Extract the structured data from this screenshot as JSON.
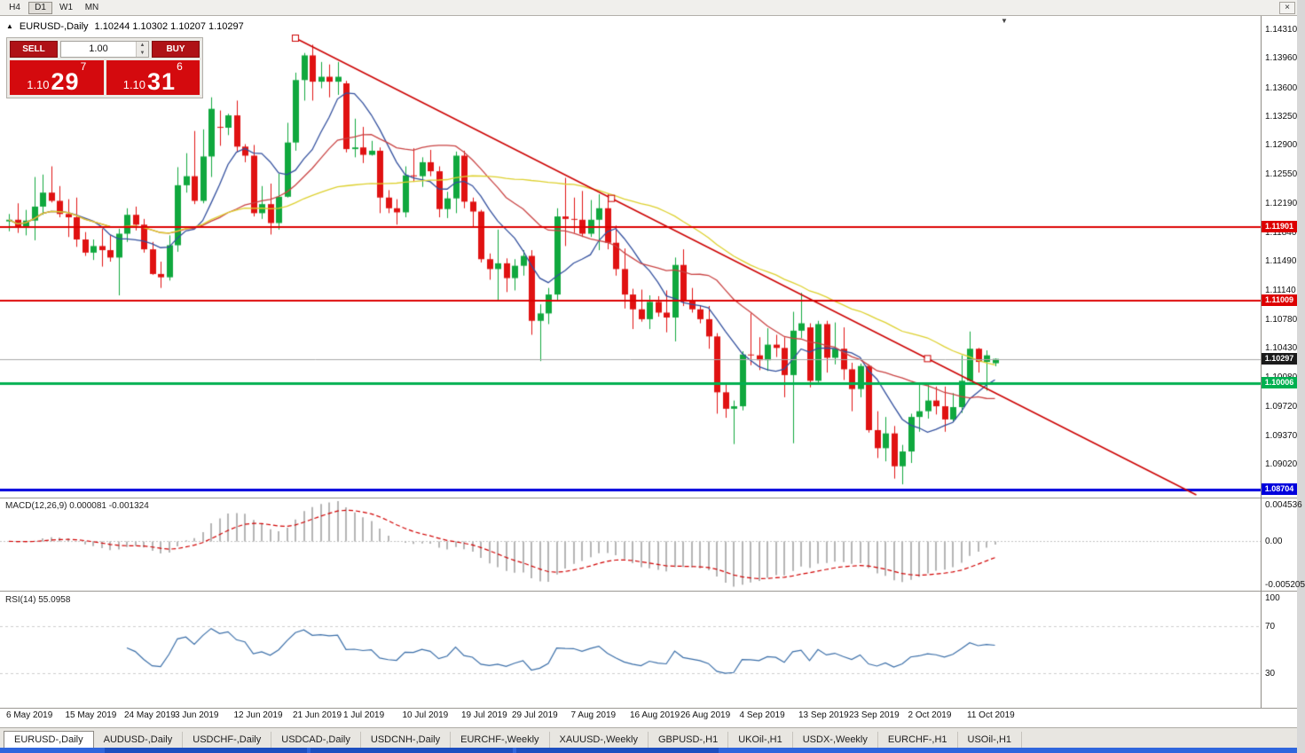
{
  "icons": {
    "collapse_up": "▲",
    "shift_marker": "▼",
    "close": "×",
    "spin_up": "▲",
    "spin_down": "▼"
  },
  "toolbar": {
    "timeframes": [
      {
        "label": "H4",
        "active": false
      },
      {
        "label": "D1",
        "active": true
      },
      {
        "label": "W1",
        "active": false
      },
      {
        "label": "MN",
        "active": false
      }
    ]
  },
  "chart_header": {
    "symbol": "EURUSD-,Daily",
    "ohlc": "1.10244 1.10302 1.10207 1.10297"
  },
  "trade_widget": {
    "sell_label": "SELL",
    "buy_label": "BUY",
    "volume": "1.00",
    "sell_price": {
      "big": "1.10",
      "pips": "29",
      "pt": "7"
    },
    "buy_price": {
      "big": "1.10",
      "pips": "31",
      "pt": "6"
    }
  },
  "macd_panel": {
    "label": "MACD(12,26,9) 0.000081 -0.001324",
    "scale_labels": [
      "0.004536",
      "0.00",
      "-0.005205"
    ]
  },
  "rsi_panel": {
    "label": "RSI(14) 55.0958",
    "scale_labels": [
      "100",
      "70",
      "30"
    ]
  },
  "tabs": [
    {
      "label": "EURUSD-,Daily",
      "active": true
    },
    {
      "label": "AUDUSD-,Daily",
      "active": false
    },
    {
      "label": "USDCHF-,Daily",
      "active": false
    },
    {
      "label": "USDCAD-,Daily",
      "active": false
    },
    {
      "label": "USDCNH-,Daily",
      "active": false
    },
    {
      "label": "EURCHF-,Weekly",
      "active": false
    },
    {
      "label": "XAUUSD-,Weekly",
      "active": false
    },
    {
      "label": "GBPUSD-,H1",
      "active": false
    },
    {
      "label": "UKOil-,H1",
      "active": false
    },
    {
      "label": "USDX-,Weekly",
      "active": false
    },
    {
      "label": "EURCHF-,H1",
      "active": false
    },
    {
      "label": "USOil-,H1",
      "active": false
    }
  ],
  "chart_data": {
    "type": "candlestick",
    "symbol": "EURUSD",
    "timeframe": "Daily",
    "ylim": [
      1.0862,
      1.1447
    ],
    "y_ticks": [
      "1.14310",
      "1.13960",
      "1.13600",
      "1.13250",
      "1.12900",
      "1.12550",
      "1.12190",
      "1.11840",
      "1.11490",
      "1.11140",
      "1.10780",
      "1.10430",
      "1.10080",
      "1.09720",
      "1.09370",
      "1.09020"
    ],
    "up_color": "#10a83e",
    "down_color": "#e01212",
    "candles": [
      [
        1.1197,
        1.1206,
        1.1185,
        1.1199
      ],
      [
        1.1199,
        1.1219,
        1.1183,
        1.1189
      ],
      [
        1.1189,
        1.1211,
        1.118,
        1.1198
      ],
      [
        1.1198,
        1.1251,
        1.1174,
        1.1215
      ],
      [
        1.1215,
        1.1254,
        1.1205,
        1.1232
      ],
      [
        1.1232,
        1.1264,
        1.122,
        1.1222
      ],
      [
        1.1222,
        1.124,
        1.1202,
        1.1206
      ],
      [
        1.1206,
        1.1224,
        1.1178,
        1.1202
      ],
      [
        1.1202,
        1.1226,
        1.1166,
        1.1175
      ],
      [
        1.1175,
        1.1184,
        1.1155,
        1.1159
      ],
      [
        1.1159,
        1.1175,
        1.115,
        1.1167
      ],
      [
        1.1167,
        1.1188,
        1.1142,
        1.1162
      ],
      [
        1.1162,
        1.118,
        1.1148,
        1.1153
      ],
      [
        1.1153,
        1.1188,
        1.1107,
        1.1182
      ],
      [
        1.1182,
        1.1213,
        1.1172,
        1.1205
      ],
      [
        1.1205,
        1.1215,
        1.1186,
        1.1193
      ],
      [
        1.1193,
        1.12,
        1.1159,
        1.1163
      ],
      [
        1.1163,
        1.1172,
        1.1132,
        1.1133
      ],
      [
        1.1133,
        1.1148,
        1.1116,
        1.1129
      ],
      [
        1.1129,
        1.118,
        1.1125,
        1.1168
      ],
      [
        1.1168,
        1.1263,
        1.116,
        1.1241
      ],
      [
        1.1241,
        1.128,
        1.1232,
        1.1252
      ],
      [
        1.1252,
        1.1307,
        1.1218,
        1.1222
      ],
      [
        1.1222,
        1.1309,
        1.1219,
        1.1276
      ],
      [
        1.1276,
        1.1348,
        1.1251,
        1.1334
      ],
      [
        1.1312,
        1.1332,
        1.1289,
        1.1311
      ],
      [
        1.1311,
        1.1328,
        1.1302,
        1.1326
      ],
      [
        1.1326,
        1.1344,
        1.1282,
        1.1288
      ],
      [
        1.1288,
        1.1291,
        1.1269,
        1.1277
      ],
      [
        1.1277,
        1.129,
        1.1203,
        1.1207
      ],
      [
        1.1207,
        1.124,
        1.12,
        1.1218
      ],
      [
        1.1218,
        1.1243,
        1.1181,
        1.1195
      ],
      [
        1.1195,
        1.1255,
        1.1187,
        1.1227
      ],
      [
        1.1227,
        1.1317,
        1.1226,
        1.1293
      ],
      [
        1.1293,
        1.1378,
        1.1283,
        1.1369
      ],
      [
        1.1369,
        1.1402,
        1.1344,
        1.1399
      ],
      [
        1.1399,
        1.1412,
        1.1344,
        1.1367
      ],
      [
        1.1367,
        1.1391,
        1.1359,
        1.1373
      ],
      [
        1.1373,
        1.1388,
        1.1348,
        1.1367
      ],
      [
        1.1367,
        1.1391,
        1.1351,
        1.1373
      ],
      [
        1.1365,
        1.1368,
        1.1281,
        1.1285
      ],
      [
        1.1285,
        1.1322,
        1.1275,
        1.1287
      ],
      [
        1.1287,
        1.1312,
        1.1268,
        1.1278
      ],
      [
        1.1278,
        1.1295,
        1.1277,
        1.1283
      ],
      [
        1.1283,
        1.1287,
        1.1207,
        1.1226
      ],
      [
        1.1226,
        1.1235,
        1.1207,
        1.1213
      ],
      [
        1.1213,
        1.1224,
        1.1193,
        1.1208
      ],
      [
        1.1208,
        1.1264,
        1.1202,
        1.1253
      ],
      [
        1.1253,
        1.1286,
        1.1245,
        1.1252
      ],
      [
        1.1252,
        1.1275,
        1.1239,
        1.1269
      ],
      [
        1.1269,
        1.1284,
        1.1252,
        1.1258
      ],
      [
        1.1258,
        1.1264,
        1.1202,
        1.1212
      ],
      [
        1.1212,
        1.1233,
        1.1201,
        1.1225
      ],
      [
        1.1225,
        1.1282,
        1.1207,
        1.1277
      ],
      [
        1.1277,
        1.1283,
        1.1213,
        1.1221
      ],
      [
        1.1221,
        1.1226,
        1.1189,
        1.1209
      ],
      [
        1.1209,
        1.1211,
        1.1147,
        1.1151
      ],
      [
        1.1151,
        1.1158,
        1.1126,
        1.1139
      ],
      [
        1.1139,
        1.1187,
        1.1101,
        1.1146
      ],
      [
        1.1146,
        1.1152,
        1.1111,
        1.1128
      ],
      [
        1.1128,
        1.1151,
        1.1113,
        1.1143
      ],
      [
        1.1143,
        1.1162,
        1.1131,
        1.1155
      ],
      [
        1.1155,
        1.1162,
        1.1059,
        1.1076
      ],
      [
        1.1076,
        1.1096,
        1.1027,
        1.1085
      ],
      [
        1.1085,
        1.1116,
        1.1072,
        1.1108
      ],
      [
        1.1108,
        1.1213,
        1.11,
        1.1203
      ],
      [
        1.1203,
        1.125,
        1.1167,
        1.12
      ],
      [
        1.12,
        1.1226,
        1.1183,
        1.1199
      ],
      [
        1.1199,
        1.1234,
        1.1178,
        1.1182
      ],
      [
        1.1182,
        1.1223,
        1.1178,
        1.1199
      ],
      [
        1.1199,
        1.123,
        1.1162,
        1.1213
      ],
      [
        1.1213,
        1.123,
        1.1163,
        1.1171
      ],
      [
        1.1171,
        1.1192,
        1.1131,
        1.1139
      ],
      [
        1.1139,
        1.1164,
        1.1091,
        1.1108
      ],
      [
        1.1108,
        1.1115,
        1.1066,
        1.109
      ],
      [
        1.109,
        1.1114,
        1.1075,
        1.1078
      ],
      [
        1.1078,
        1.1107,
        1.1066,
        1.1099
      ],
      [
        1.1099,
        1.1106,
        1.1081,
        1.1086
      ],
      [
        1.1086,
        1.1113,
        1.1062,
        1.108
      ],
      [
        1.108,
        1.1153,
        1.1051,
        1.1144
      ],
      [
        1.1144,
        1.1163,
        1.1094,
        1.1101
      ],
      [
        1.1101,
        1.1116,
        1.1086,
        1.109
      ],
      [
        1.109,
        1.1095,
        1.1073,
        1.1078
      ],
      [
        1.1078,
        1.1094,
        1.1042,
        1.1057
      ],
      [
        1.1057,
        1.1061,
        1.0963,
        1.0989
      ],
      [
        1.0989,
        1.0998,
        1.0958,
        1.0969
      ],
      [
        1.0969,
        1.0979,
        1.0926,
        1.0972
      ],
      [
        1.0972,
        1.1039,
        1.0967,
        1.1035
      ],
      [
        1.1035,
        1.1085,
        1.1022,
        1.1034
      ],
      [
        1.1034,
        1.1056,
        1.1016,
        1.1028
      ],
      [
        1.1028,
        1.1067,
        1.1015,
        1.1047
      ],
      [
        1.1047,
        1.1059,
        1.1032,
        1.1043
      ],
      [
        1.1043,
        1.1056,
        1.0983,
        1.101
      ],
      [
        1.101,
        1.1087,
        1.0927,
        1.1064
      ],
      [
        1.1064,
        1.111,
        1.1055,
        1.1073
      ],
      [
        1.1068,
        1.1073,
        1.0995,
        1.1003
      ],
      [
        1.1003,
        1.1076,
        1.0999,
        1.1072
      ],
      [
        1.1072,
        1.1076,
        1.1013,
        1.1031
      ],
      [
        1.1031,
        1.1074,
        1.1023,
        1.1042
      ],
      [
        1.1042,
        1.1068,
        1.1004,
        1.1017
      ],
      [
        1.1017,
        1.1025,
        1.0966,
        1.0993
      ],
      [
        1.0993,
        1.1024,
        1.0983,
        1.1021
      ],
      [
        1.1021,
        1.1023,
        1.094,
        1.0943
      ],
      [
        1.0943,
        1.0966,
        1.0909,
        1.0921
      ],
      [
        1.0921,
        1.0959,
        1.0905,
        1.0939
      ],
      [
        1.0939,
        1.0948,
        1.0884,
        1.0899
      ],
      [
        1.0899,
        1.0925,
        1.0877,
        1.0917
      ],
      [
        1.0917,
        1.0963,
        1.0903,
        1.0959
      ],
      [
        1.0959,
        1.0999,
        1.0941,
        1.0966
      ],
      [
        1.0966,
        1.0999,
        1.0957,
        1.0979
      ],
      [
        1.0979,
        1.0996,
        1.0962,
        1.0972
      ],
      [
        1.0972,
        1.0996,
        1.0941,
        1.0956
      ],
      [
        1.0956,
        1.0988,
        1.0953,
        1.0971
      ],
      [
        1.0971,
        1.1034,
        1.0964,
        1.1003
      ],
      [
        1.1003,
        1.1063,
        1.1002,
        1.1042
      ],
      [
        1.1042,
        1.1043,
        1.1013,
        1.1026
      ],
      [
        1.1026,
        1.104,
        1.0991,
        1.1034
      ],
      [
        1.10244,
        1.10302,
        1.10207,
        1.10297
      ]
    ],
    "date_ticks": [
      {
        "i": 0,
        "label": "6 May 2019"
      },
      {
        "i": 7,
        "label": "15 May 2019"
      },
      {
        "i": 14,
        "label": "24 May 2019"
      },
      {
        "i": 20,
        "label": "3 Jun 2019"
      },
      {
        "i": 27,
        "label": "12 Jun 2019"
      },
      {
        "i": 34,
        "label": "21 Jun 2019"
      },
      {
        "i": 40,
        "label": "1 Jul 2019"
      },
      {
        "i": 47,
        "label": "10 Jul 2019"
      },
      {
        "i": 54,
        "label": "19 Jul 2019"
      },
      {
        "i": 60,
        "label": "29 Jul 2019"
      },
      {
        "i": 67,
        "label": "7 Aug 2019"
      },
      {
        "i": 74,
        "label": "16 Aug 2019"
      },
      {
        "i": 80,
        "label": "26 Aug 2019"
      },
      {
        "i": 87,
        "label": "4 Sep 2019"
      },
      {
        "i": 94,
        "label": "13 Sep 2019"
      },
      {
        "i": 100,
        "label": "23 Sep 2019"
      },
      {
        "i": 107,
        "label": "2 Oct 2019"
      },
      {
        "i": 114,
        "label": "11 Oct 2019"
      }
    ],
    "moving_averages": [
      {
        "period": 8,
        "color": "#33509e"
      },
      {
        "period": 20,
        "color": "#c94343"
      },
      {
        "period": 45,
        "color": "#ddd02e"
      }
    ],
    "levels": [
      {
        "price": 1.11901,
        "label": "1.11901",
        "color": "#dd0000",
        "line_width": 2
      },
      {
        "price": 1.11009,
        "label": "1.11009",
        "color": "#dd0000",
        "line_width": 2
      },
      {
        "price": 1.10006,
        "label": "1.10006",
        "color": "#00b050",
        "line_width": 3
      },
      {
        "price": 1.08704,
        "label": "1.08704",
        "color": "#0000dd",
        "line_width": 3
      }
    ],
    "current_price": {
      "price": 1.10297,
      "label": "1.10297",
      "tag_color": "#1a1a1a",
      "line_color": "#a8a8a8"
    },
    "trendline": {
      "color": "#cc0000",
      "from_index": 34,
      "from_price": 1.142,
      "to_index": 109,
      "to_price": 1.103
    },
    "macd": {
      "fast": 12,
      "slow": 26,
      "signal": 9,
      "ymax": 0.004536,
      "ymin": -0.005205,
      "hist_color": "#b5b5b5",
      "signal_color": "#d00000"
    },
    "rsi": {
      "period": 14,
      "value": 55.0958,
      "color": "#3a6ea8",
      "levels": [
        70,
        30
      ],
      "ymin": 0,
      "ymax": 100
    }
  }
}
